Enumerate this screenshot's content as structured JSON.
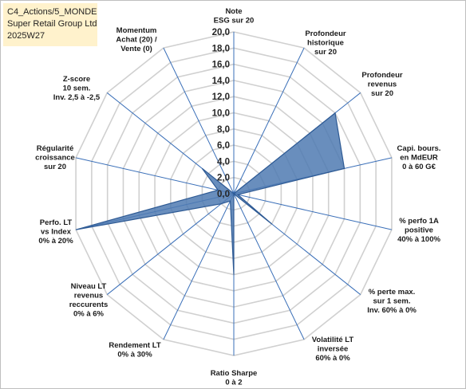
{
  "header": {
    "line1": "C4_Actions/5_MONDE",
    "line2": "Super Retail Group Ltd",
    "line3": "2025W27"
  },
  "chart_data": {
    "type": "radar",
    "rmin": 0,
    "rmax": 20,
    "tick_step": 2,
    "ticks": [
      "0,0",
      "2,0",
      "4,0",
      "6,0",
      "8,0",
      "10,0",
      "12,0",
      "14,0",
      "16,0",
      "18,0",
      "20,0"
    ],
    "grid": true,
    "legend": "none",
    "colors": {
      "fill": "#4f7ab1",
      "stroke": "#2e5a94",
      "grid": "#d0d0d0",
      "spoke": "#3a6fb8"
    },
    "axes": [
      {
        "label": [
          "Note",
          "ESG sur 20"
        ],
        "value": 0
      },
      {
        "label": [
          "Profondeur",
          "historique",
          "sur 20"
        ],
        "value": 0
      },
      {
        "label": [
          "Profondeur",
          "revenus",
          "sur 20"
        ],
        "value": 16
      },
      {
        "label": [
          "Capi. bours.",
          "en MdEUR",
          "0 à 60 G€"
        ],
        "value": 14
      },
      {
        "label": [
          "% perfo 1A",
          "positive",
          "40% à 100%"
        ],
        "value": 0.5
      },
      {
        "label": [
          "% perte max.",
          "sur 1 sem.",
          "Inv. 60% à 0%"
        ],
        "value": 6
      },
      {
        "label": [
          "Volatilité LT",
          "inversée",
          "60% à 0%"
        ],
        "value": 0
      },
      {
        "label": [
          "Ratio Sharpe",
          "0 à 2"
        ],
        "value": 10
      },
      {
        "label": [
          "Rendement LT",
          "0% à 30%"
        ],
        "value": 1
      },
      {
        "label": [
          "Niveau LT",
          "revenus",
          "reccurents",
          "0% à 6%"
        ],
        "value": 2
      },
      {
        "label": [
          "Perfo. LT",
          "vs Index",
          "0% à 20%"
        ],
        "value": 20
      },
      {
        "label": [
          "Régularité",
          "croissance",
          "sur 20"
        ],
        "value": 2
      },
      {
        "label": [
          "Z-score",
          "10 sem.",
          "Inv. 2,5 à -2,5"
        ],
        "value": 5
      },
      {
        "label": [
          "Momentum",
          "Achat (20) /",
          "Vente (0)"
        ],
        "value": 0
      }
    ]
  }
}
